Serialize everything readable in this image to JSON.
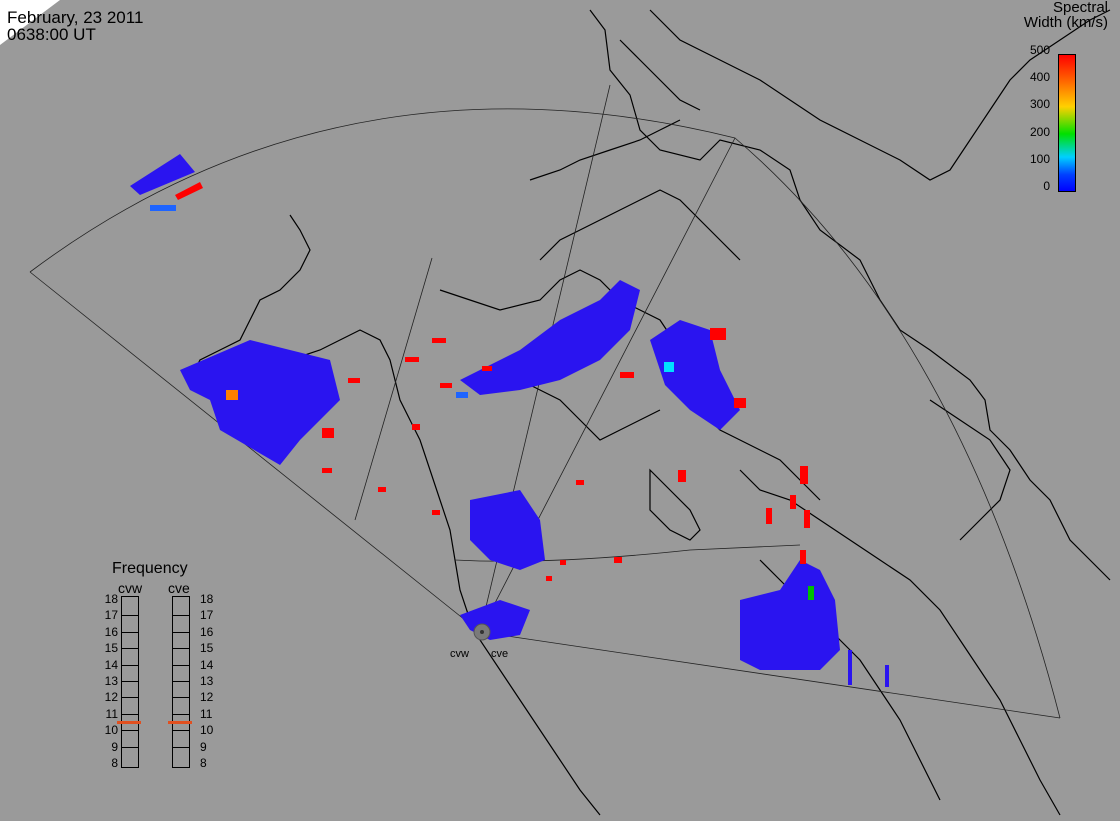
{
  "header": {
    "date": "February, 23 2011",
    "time": "0638:00 UT"
  },
  "colorbar": {
    "title_line1": "Spectral",
    "title_line2": "Width (km/s)",
    "ticks": [
      "500",
      "400",
      "300",
      "200",
      "100",
      "0"
    ],
    "colors": [
      "#ff0000",
      "#ff8000",
      "#ffd000",
      "#00e000",
      "#00d0ff",
      "#0000ff"
    ]
  },
  "frequency_panel": {
    "title": "Frequency",
    "left_radar": "cvw",
    "right_radar": "cve",
    "labels": [
      "18",
      "17",
      "16",
      "15",
      "14",
      "13",
      "12",
      "11",
      "10",
      "9",
      "8"
    ],
    "cvw_mhz": 10.5,
    "cve_mhz": 10.5,
    "indicator_color": "#e05020"
  },
  "radar_sites": {
    "west": "cvw",
    "east": "cve"
  },
  "colors": {
    "scatter_low": "#2a14f0",
    "scatter_high": "#ff0000",
    "map_bg": "#9a9a9a",
    "coast": "#000000"
  }
}
